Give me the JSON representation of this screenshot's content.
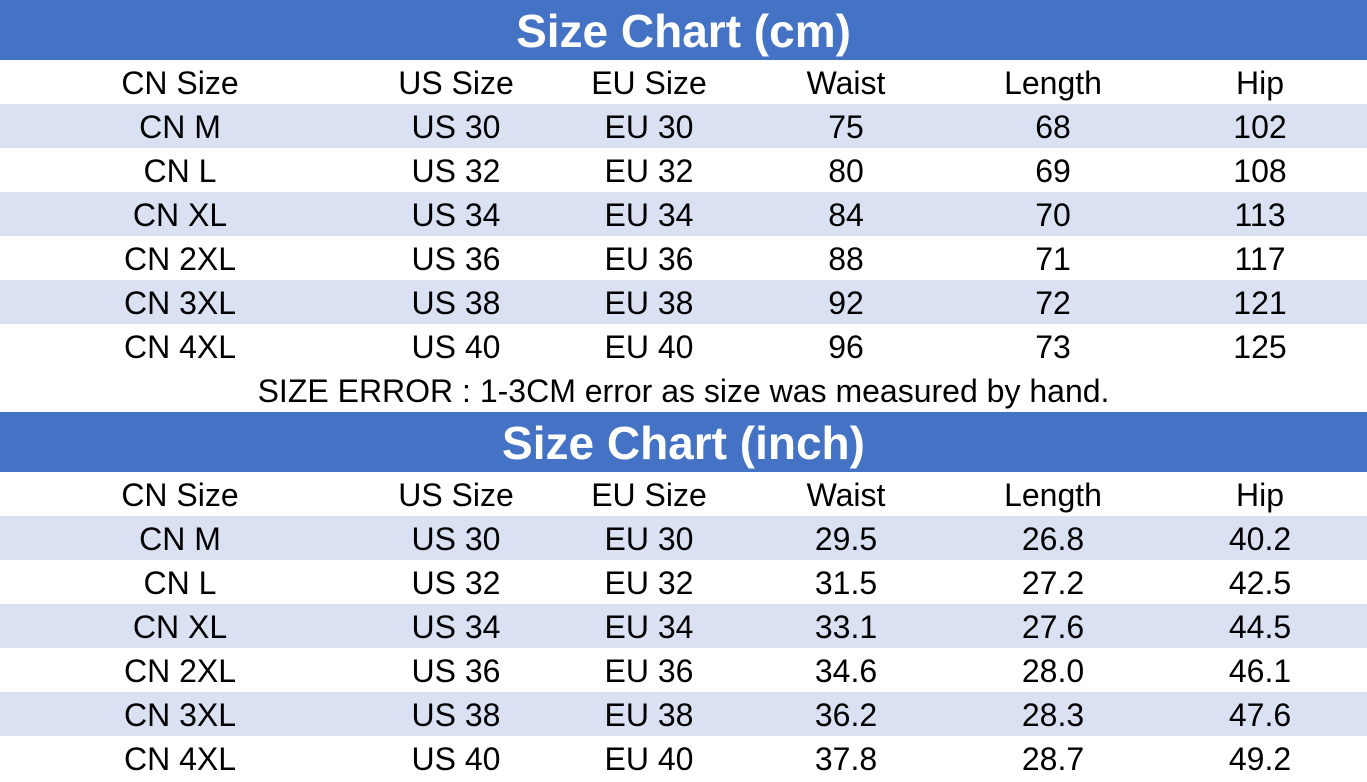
{
  "tables": [
    {
      "title": "Size Chart (cm)",
      "header": [
        "CN Size",
        "US Size",
        "EU Size",
        "Waist",
        "Length",
        "Hip"
      ],
      "rows": [
        [
          "CN M",
          "US 30",
          "EU 30",
          "75",
          "68",
          "102"
        ],
        [
          "CN L",
          "US 32",
          "EU 32",
          "80",
          "69",
          "108"
        ],
        [
          "CN XL",
          "US 34",
          "EU 34",
          "84",
          "70",
          "113"
        ],
        [
          "CN 2XL",
          "US 36",
          "EU 36",
          "88",
          "71",
          "117"
        ],
        [
          "CN 3XL",
          "US 38",
          "EU 38",
          "92",
          "72",
          "121"
        ],
        [
          "CN 4XL",
          "US 40",
          "EU 40",
          "96",
          "73",
          "125"
        ]
      ],
      "note": "SIZE ERROR : 1-3CM error as size was measured by hand."
    },
    {
      "title": "Size Chart (inch)",
      "header": [
        "CN Size",
        "US Size",
        "EU Size",
        "Waist",
        "Length",
        "Hip"
      ],
      "rows": [
        [
          "CN M",
          "US 30",
          "EU 30",
          "29.5",
          "26.8",
          "40.2"
        ],
        [
          "CN L",
          "US 32",
          "EU 32",
          "31.5",
          "27.2",
          "42.5"
        ],
        [
          "CN XL",
          "US 34",
          "EU 34",
          "33.1",
          "27.6",
          "44.5"
        ],
        [
          "CN 2XL",
          "US 36",
          "EU 36",
          "34.6",
          "28.0",
          "46.1"
        ],
        [
          "CN 3XL",
          "US 38",
          "EU 38",
          "36.2",
          "28.3",
          "47.6"
        ],
        [
          "CN 4XL",
          "US 40",
          "EU 40",
          "37.8",
          "28.7",
          "49.2"
        ]
      ]
    }
  ]
}
